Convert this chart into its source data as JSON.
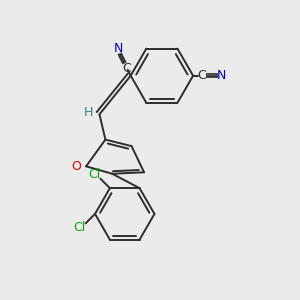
{
  "bg_color": "#ebebeb",
  "bond_color": "#2d2d2d",
  "N_color": "#0000cc",
  "O_color": "#dd0000",
  "Cl_color": "#00aa00",
  "H_color": "#3a8080",
  "C_color": "#2d2d2d",
  "line_width": 1.4,
  "fig_w": 3.0,
  "fig_h": 3.0,
  "dpi": 100,
  "xlim": [
    0,
    10
  ],
  "ylim": [
    0,
    10
  ]
}
